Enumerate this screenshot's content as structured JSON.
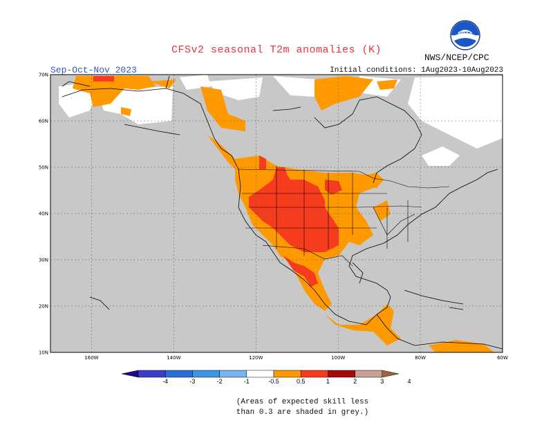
{
  "header": {
    "title": "CFSv2 seasonal T2m anomalies (K)",
    "season": "Sep-Oct-Nov 2023",
    "initial_conditions": "Initial conditions: 1Aug2023-10Aug2023",
    "agency": "NWS/NCEP/CPC",
    "logo_text": "NOAA"
  },
  "map": {
    "lat_labels": [
      "70N",
      "60N",
      "50N",
      "40N",
      "30N",
      "20N",
      "10N"
    ],
    "lon_labels": [
      "160W",
      "140W",
      "120W",
      "100W",
      "80W",
      "60W"
    ],
    "extent": {
      "lon_min": -170,
      "lon_max": -60,
      "lat_min": 10,
      "lat_max": 70
    },
    "skill_mask_color": "#c8c8c8",
    "ocean_land_color": "#ffffff"
  },
  "colorbar": {
    "labels": [
      "-4",
      "-3",
      "-2",
      "-1",
      "-0.5",
      "0.5",
      "1",
      "2",
      "3",
      "4"
    ],
    "colors": [
      "#1e0a8c",
      "#3c3cc8",
      "#2a6fd6",
      "#3c96e6",
      "#78b4f0",
      "#ffffff",
      "#ff9900",
      "#f53c1e",
      "#a00a0a",
      "#c8a096",
      "#a0643c"
    ]
  },
  "footnote": {
    "line1": "(Areas of expected skill less",
    "line2": "than 0.3 are shaded in grey.)"
  },
  "colors": {
    "title": "#e8353b",
    "season": "#2d57c9",
    "anom_05_1": "#ff9900",
    "anom_1_2": "#f53c1e"
  }
}
